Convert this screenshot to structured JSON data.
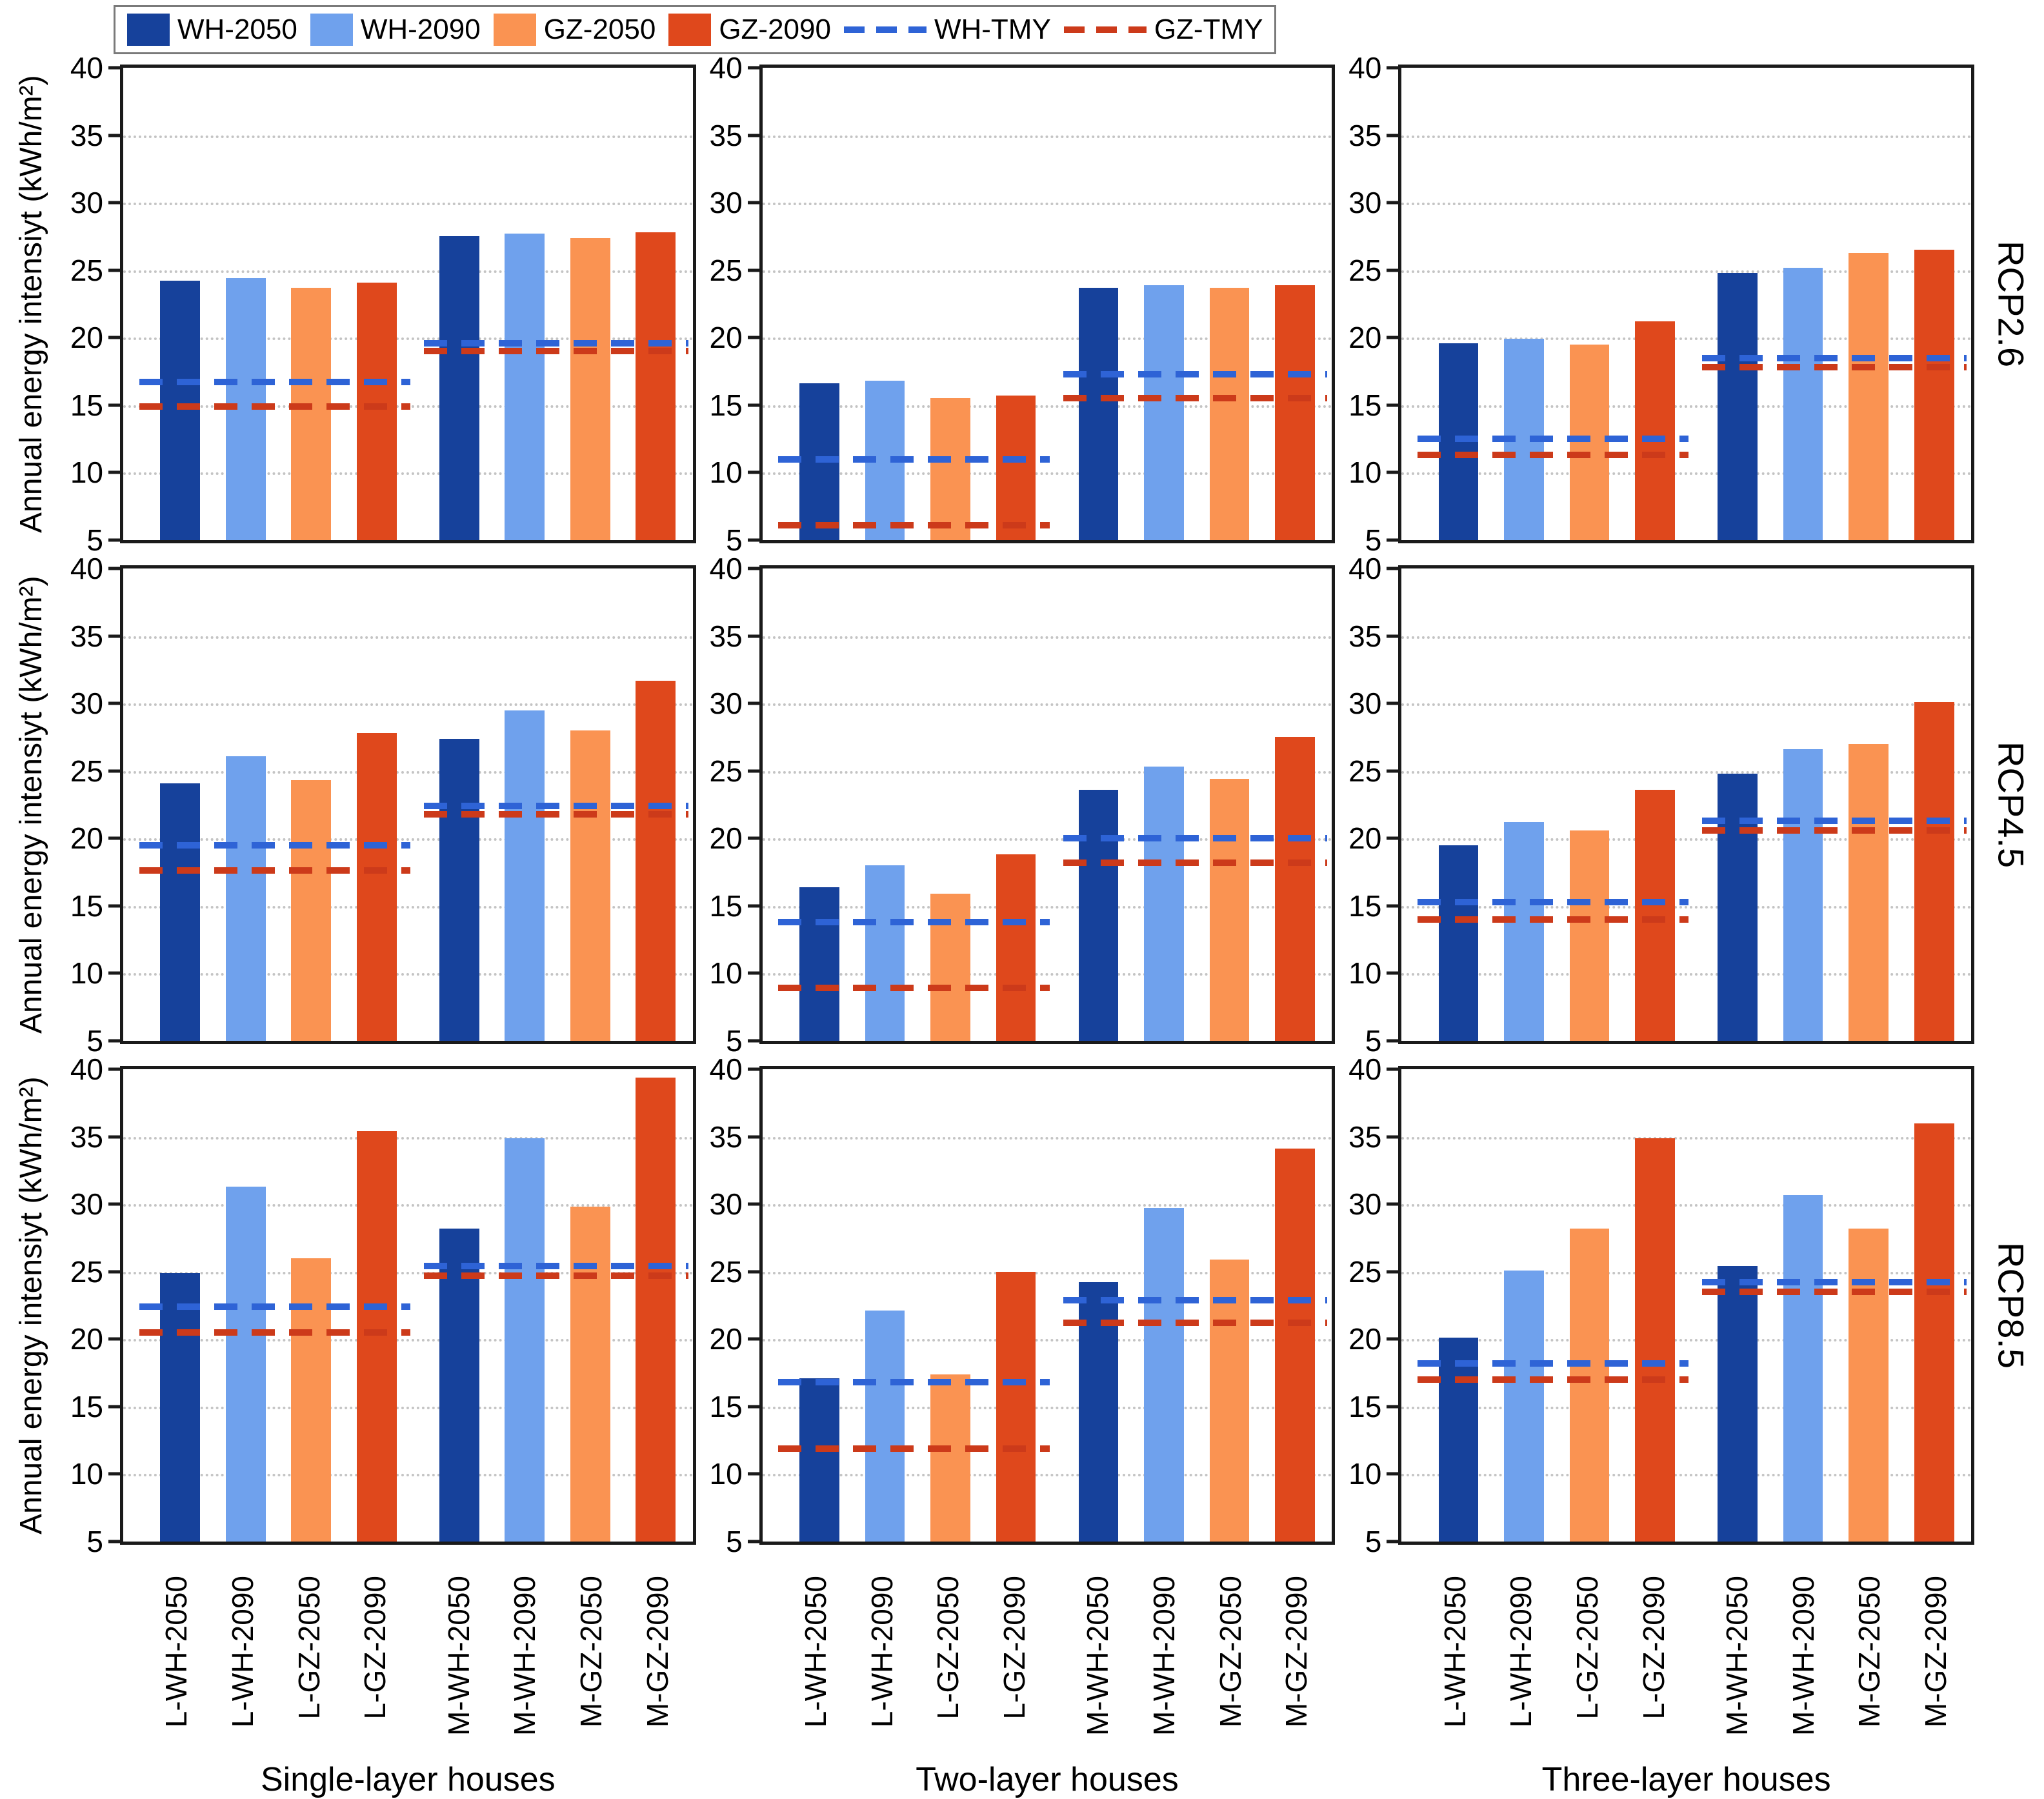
{
  "legend": {
    "items": [
      {
        "label": "WH-2050",
        "color_key": "wh2050",
        "type": "swatch"
      },
      {
        "label": "WH-2090",
        "color_key": "wh2090",
        "type": "swatch"
      },
      {
        "label": "GZ-2050",
        "color_key": "gz2050",
        "type": "swatch"
      },
      {
        "label": "GZ-2090",
        "color_key": "gz2090",
        "type": "swatch"
      },
      {
        "label": "WH-TMY",
        "color_key": "wh_tmy",
        "type": "dash"
      },
      {
        "label": "GZ-TMY",
        "color_key": "gz_tmy",
        "type": "dash"
      }
    ]
  },
  "colors": {
    "wh2050": "#16419b",
    "wh2090": "#6fa1ed",
    "gz2050": "#fa9352",
    "gz2090": "#df481c",
    "wh_tmy": "#2e63d6",
    "gz_tmy": "#cc3a1a",
    "grid": "#c4c4c4",
    "axis": "#1a1a1a"
  },
  "y_axis": {
    "title": "Annual energy intensiyt (kWh/m²)",
    "min": 5,
    "max": 40,
    "ticks": [
      40,
      35,
      30,
      25,
      20,
      15,
      10,
      5
    ],
    "grid_values": [
      35,
      30,
      25,
      20,
      15,
      10
    ]
  },
  "x_labels": [
    "L-WH-2050",
    "L-WH-2090",
    "L-GZ-2050",
    "L-GZ-2090",
    "M-WH-2050",
    "M-WH-2090",
    "M-GZ-2050",
    "M-GZ-2090"
  ],
  "row_labels": [
    "RCP2.6",
    "RCP4.5",
    "RCP8.5"
  ],
  "column_titles": [
    "Single-layer houses",
    "Two-layer houses",
    "Three-layer houses"
  ],
  "chart_data": [
    {
      "type": "bar",
      "row": "RCP2.6",
      "column": "Single-layer houses",
      "ylim": [
        5,
        40
      ],
      "categories": [
        "L-WH-2050",
        "L-WH-2090",
        "L-GZ-2050",
        "L-GZ-2090",
        "M-WH-2050",
        "M-WH-2090",
        "M-GZ-2050",
        "M-GZ-2090"
      ],
      "values": [
        24.2,
        24.4,
        23.7,
        24.1,
        27.5,
        27.7,
        27.4,
        27.8
      ],
      "tmy_lines": {
        "WH-TMY": {
          "left_group": 16.7,
          "right_group": 19.6
        },
        "GZ-TMY": {
          "left_group": 14.9,
          "right_group": 19.0
        }
      }
    },
    {
      "type": "bar",
      "row": "RCP2.6",
      "column": "Two-layer houses",
      "ylim": [
        5,
        40
      ],
      "categories": [
        "L-WH-2050",
        "L-WH-2090",
        "L-GZ-2050",
        "L-GZ-2090",
        "M-WH-2050",
        "M-WH-2090",
        "M-GZ-2050",
        "M-GZ-2090"
      ],
      "values": [
        16.6,
        16.8,
        15.5,
        15.7,
        23.7,
        23.9,
        23.7,
        23.9
      ],
      "tmy_lines": {
        "WH-TMY": {
          "left_group": 11.0,
          "right_group": 17.3
        },
        "GZ-TMY": {
          "left_group": 6.1,
          "right_group": 15.5
        }
      }
    },
    {
      "type": "bar",
      "row": "RCP2.6",
      "column": "Three-layer houses",
      "ylim": [
        5,
        40
      ],
      "categories": [
        "L-WH-2050",
        "L-WH-2090",
        "L-GZ-2050",
        "L-GZ-2090",
        "M-WH-2050",
        "M-WH-2090",
        "M-GZ-2050",
        "M-GZ-2090"
      ],
      "values": [
        19.6,
        19.9,
        19.5,
        21.2,
        24.8,
        25.2,
        26.3,
        26.5
      ],
      "tmy_lines": {
        "WH-TMY": {
          "left_group": 12.5,
          "right_group": 18.5
        },
        "GZ-TMY": {
          "left_group": 11.3,
          "right_group": 17.8
        }
      }
    },
    {
      "type": "bar",
      "row": "RCP4.5",
      "column": "Single-layer houses",
      "ylim": [
        5,
        40
      ],
      "categories": [
        "L-WH-2050",
        "L-WH-2090",
        "L-GZ-2050",
        "L-GZ-2090",
        "M-WH-2050",
        "M-WH-2090",
        "M-GZ-2050",
        "M-GZ-2090"
      ],
      "values": [
        24.1,
        26.1,
        24.3,
        27.8,
        27.4,
        29.5,
        28.0,
        31.7
      ],
      "tmy_lines": {
        "WH-TMY": {
          "left_group": 19.5,
          "right_group": 22.4
        },
        "GZ-TMY": {
          "left_group": 17.6,
          "right_group": 21.8
        }
      }
    },
    {
      "type": "bar",
      "row": "RCP4.5",
      "column": "Two-layer houses",
      "ylim": [
        5,
        40
      ],
      "categories": [
        "L-WH-2050",
        "L-WH-2090",
        "L-GZ-2050",
        "L-GZ-2090",
        "M-WH-2050",
        "M-WH-2090",
        "M-GZ-2050",
        "M-GZ-2090"
      ],
      "values": [
        16.4,
        18.0,
        15.9,
        18.8,
        23.6,
        25.3,
        24.4,
        27.5
      ],
      "tmy_lines": {
        "WH-TMY": {
          "left_group": 13.8,
          "right_group": 20.0
        },
        "GZ-TMY": {
          "left_group": 8.9,
          "right_group": 18.2
        }
      }
    },
    {
      "type": "bar",
      "row": "RCP4.5",
      "column": "Three-layer houses",
      "ylim": [
        5,
        40
      ],
      "categories": [
        "L-WH-2050",
        "L-WH-2090",
        "L-GZ-2050",
        "L-GZ-2090",
        "M-WH-2050",
        "M-WH-2090",
        "M-GZ-2050",
        "M-GZ-2090"
      ],
      "values": [
        19.5,
        21.2,
        20.6,
        23.6,
        24.8,
        26.6,
        27.0,
        30.1
      ],
      "tmy_lines": {
        "WH-TMY": {
          "left_group": 15.3,
          "right_group": 21.3
        },
        "GZ-TMY": {
          "left_group": 14.0,
          "right_group": 20.6
        }
      }
    },
    {
      "type": "bar",
      "row": "RCP8.5",
      "column": "Single-layer houses",
      "ylim": [
        5,
        40
      ],
      "categories": [
        "L-WH-2050",
        "L-WH-2090",
        "L-GZ-2050",
        "L-GZ-2090",
        "M-WH-2050",
        "M-WH-2090",
        "M-GZ-2050",
        "M-GZ-2090"
      ],
      "values": [
        24.9,
        31.3,
        26.0,
        35.4,
        28.2,
        34.9,
        29.8,
        39.4
      ],
      "tmy_lines": {
        "WH-TMY": {
          "left_group": 22.4,
          "right_group": 25.4
        },
        "GZ-TMY": {
          "left_group": 20.5,
          "right_group": 24.7
        }
      }
    },
    {
      "type": "bar",
      "row": "RCP8.5",
      "column": "Two-layer houses",
      "ylim": [
        5,
        40
      ],
      "categories": [
        "L-WH-2050",
        "L-WH-2090",
        "L-GZ-2050",
        "L-GZ-2090",
        "M-WH-2050",
        "M-WH-2090",
        "M-GZ-2050",
        "M-GZ-2090"
      ],
      "values": [
        17.1,
        22.1,
        17.4,
        25.0,
        24.2,
        29.7,
        25.9,
        34.1
      ],
      "tmy_lines": {
        "WH-TMY": {
          "left_group": 16.8,
          "right_group": 22.9
        },
        "GZ-TMY": {
          "left_group": 11.9,
          "right_group": 21.2
        }
      }
    },
    {
      "type": "bar",
      "row": "RCP8.5",
      "column": "Three-layer houses",
      "ylim": [
        5,
        40
      ],
      "categories": [
        "L-WH-2050",
        "L-WH-2090",
        "L-GZ-2050",
        "L-GZ-2090",
        "M-WH-2050",
        "M-WH-2090",
        "M-GZ-2050",
        "M-GZ-2090"
      ],
      "values": [
        20.1,
        25.1,
        28.2,
        34.9,
        25.4,
        30.7,
        28.2,
        36.0
      ],
      "tmy_lines": {
        "WH-TMY": {
          "left_group": 18.2,
          "right_group": 24.2
        },
        "GZ-TMY": {
          "left_group": 17.0,
          "right_group": 23.5
        }
      }
    }
  ]
}
